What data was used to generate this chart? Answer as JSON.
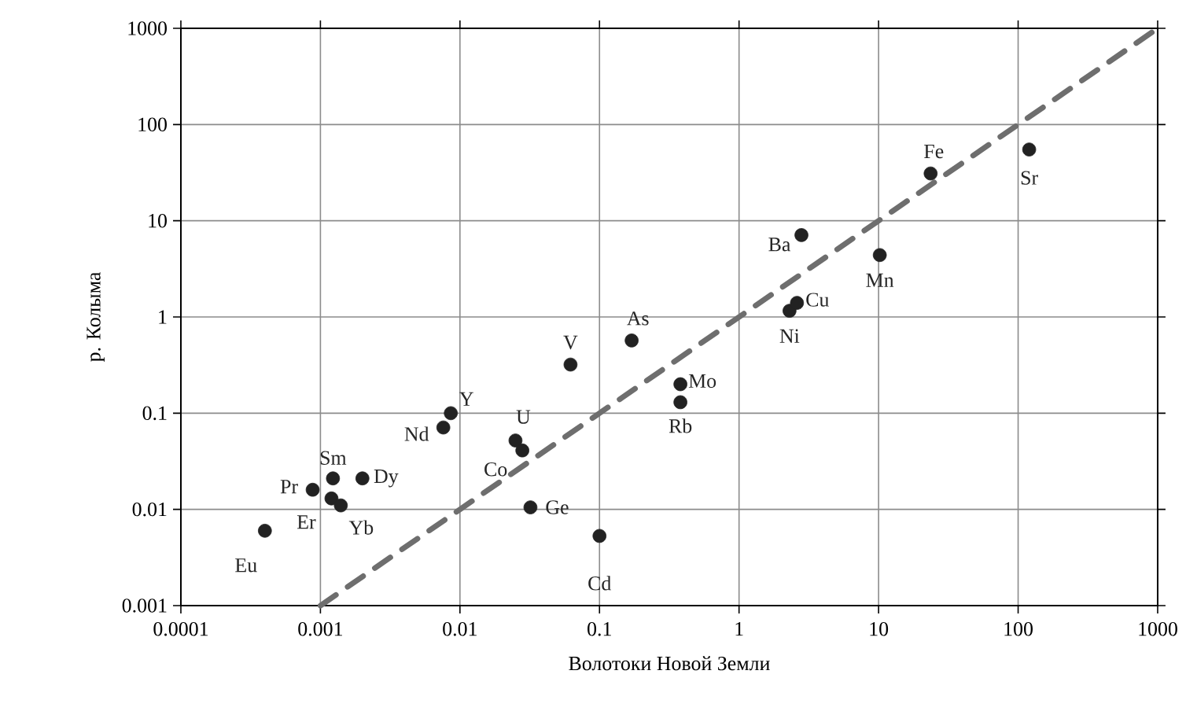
{
  "chart_data": {
    "type": "scatter",
    "xlabel": "Волотоки Новой Земли",
    "ylabel": "р. Колыма",
    "log": "xy",
    "grid": true,
    "marker": "circle",
    "xlim": [
      0.0001,
      1000
    ],
    "ylim": [
      0.001,
      1000
    ],
    "xticks": [
      0.0001,
      0.001,
      0.01,
      0.1,
      1,
      10,
      100,
      1000
    ],
    "yticks": [
      0.001,
      0.01,
      0.1,
      1,
      10,
      100,
      1000
    ],
    "series": [
      {
        "color": "#222222",
        "x": [
          0.0004,
          0.00088,
          0.0012,
          0.0014,
          0.00123,
          0.002,
          0.0076,
          0.0086,
          0.025,
          0.028,
          0.032,
          0.1,
          0.062,
          0.17,
          0.38,
          0.38,
          2.3,
          2.6,
          2.8,
          10.2,
          23.6,
          120
        ],
        "values": [
          0.006,
          0.016,
          0.013,
          0.011,
          0.021,
          0.021,
          0.071,
          0.1,
          0.052,
          0.041,
          0.0105,
          0.0053,
          0.32,
          0.57,
          0.2,
          0.13,
          1.16,
          1.4,
          7.1,
          4.4,
          31,
          55
        ]
      },
      {
        "type": "line",
        "color": "#6e6e6e",
        "line_style": "dashed",
        "marker": "none",
        "x": [
          0.001,
          1000
        ],
        "values": [
          0.001,
          1000
        ]
      }
    ],
    "annotations": [
      {
        "text": "Eu",
        "x": 0.0004,
        "y": 0.006
      },
      {
        "text": "Pr",
        "x": 0.00088,
        "y": 0.016
      },
      {
        "text": "Er",
        "x": 0.0012,
        "y": 0.013
      },
      {
        "text": "Yb",
        "x": 0.0014,
        "y": 0.011
      },
      {
        "text": "Sm",
        "x": 0.00123,
        "y": 0.021
      },
      {
        "text": "Dy",
        "x": 0.002,
        "y": 0.021
      },
      {
        "text": "Nd",
        "x": 0.0076,
        "y": 0.071
      },
      {
        "text": "Y",
        "x": 0.0086,
        "y": 0.1
      },
      {
        "text": "U",
        "x": 0.025,
        "y": 0.052
      },
      {
        "text": "Co",
        "x": 0.028,
        "y": 0.041
      },
      {
        "text": "Ge",
        "x": 0.032,
        "y": 0.0105
      },
      {
        "text": "Cd",
        "x": 0.1,
        "y": 0.0053
      },
      {
        "text": "V",
        "x": 0.062,
        "y": 0.32
      },
      {
        "text": "As",
        "x": 0.17,
        "y": 0.57
      },
      {
        "text": "Mo",
        "x": 0.38,
        "y": 0.2
      },
      {
        "text": "Rb",
        "x": 0.38,
        "y": 0.13
      },
      {
        "text": "Ni",
        "x": 2.3,
        "y": 1.16
      },
      {
        "text": "Cu",
        "x": 2.6,
        "y": 1.4
      },
      {
        "text": "Ba",
        "x": 2.8,
        "y": 7.1
      },
      {
        "text": "Mn",
        "x": 10.2,
        "y": 4.4
      },
      {
        "text": "Fe",
        "x": 23.6,
        "y": 31
      },
      {
        "text": "Sr",
        "x": 120,
        "y": 55
      }
    ]
  }
}
